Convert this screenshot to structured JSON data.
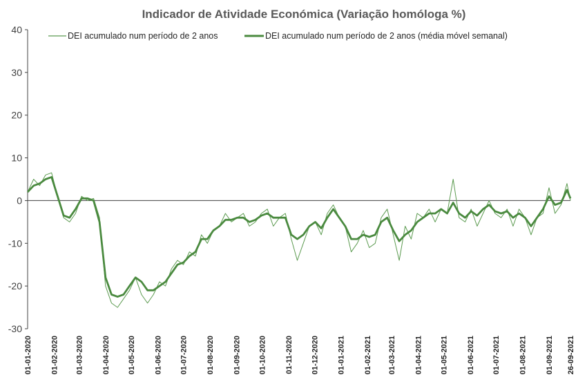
{
  "chart_data": {
    "type": "line",
    "title": "Indicador de Atividade Económica (Variação homóloga %)",
    "ylim": [
      -30,
      40
    ],
    "yticks": [
      -30,
      -20,
      -10,
      0,
      10,
      20,
      30,
      40
    ],
    "x_start": "2020-01-01",
    "x_end": "2021-09-26",
    "x_tick_labels": [
      "01-01-2020",
      "01-02-2020",
      "01-03-2020",
      "01-04-2020",
      "01-05-2020",
      "01-06-2020",
      "01-07-2020",
      "01-08-2020",
      "01-09-2020",
      "01-10-2020",
      "01-11-2020",
      "01-12-2020",
      "01-01-2021",
      "01-02-2021",
      "01-03-2021",
      "01-04-2021",
      "01-05-2021",
      "01-06-2021",
      "01-07-2021",
      "01-08-2021",
      "01-09-2021",
      "26-09-2021"
    ],
    "x_tick_dates": [
      "2020-01-01",
      "2020-02-01",
      "2020-03-01",
      "2020-04-01",
      "2020-05-01",
      "2020-06-01",
      "2020-07-01",
      "2020-08-01",
      "2020-09-01",
      "2020-10-01",
      "2020-11-01",
      "2020-12-01",
      "2021-01-01",
      "2021-02-01",
      "2021-03-01",
      "2021-04-01",
      "2021-05-01",
      "2021-06-01",
      "2021-07-01",
      "2021-08-01",
      "2021-09-01",
      "2021-09-26"
    ],
    "legend_position": "top",
    "series": [
      {
        "name": "DEI acumulado num período de 2 anos",
        "color": "#5b9a4f",
        "style": "thin-daily",
        "x": [
          "2020-01-01",
          "2020-01-08",
          "2020-01-15",
          "2020-01-22",
          "2020-01-29",
          "2020-02-05",
          "2020-02-12",
          "2020-02-19",
          "2020-02-26",
          "2020-03-04",
          "2020-03-11",
          "2020-03-18",
          "2020-03-25",
          "2020-04-01",
          "2020-04-08",
          "2020-04-15",
          "2020-04-22",
          "2020-04-29",
          "2020-05-06",
          "2020-05-13",
          "2020-05-20",
          "2020-05-27",
          "2020-06-03",
          "2020-06-10",
          "2020-06-17",
          "2020-06-24",
          "2020-07-01",
          "2020-07-08",
          "2020-07-15",
          "2020-07-22",
          "2020-07-29",
          "2020-08-05",
          "2020-08-12",
          "2020-08-19",
          "2020-08-26",
          "2020-09-02",
          "2020-09-09",
          "2020-09-16",
          "2020-09-23",
          "2020-09-30",
          "2020-10-07",
          "2020-10-14",
          "2020-10-21",
          "2020-10-28",
          "2020-11-04",
          "2020-11-11",
          "2020-11-18",
          "2020-11-25",
          "2020-12-02",
          "2020-12-09",
          "2020-12-16",
          "2020-12-23",
          "2020-12-30",
          "2021-01-06",
          "2021-01-13",
          "2021-01-20",
          "2021-01-27",
          "2021-02-03",
          "2021-02-10",
          "2021-02-17",
          "2021-02-24",
          "2021-03-03",
          "2021-03-10",
          "2021-03-17",
          "2021-03-24",
          "2021-03-31",
          "2021-04-07",
          "2021-04-14",
          "2021-04-21",
          "2021-04-28",
          "2021-05-05",
          "2021-05-12",
          "2021-05-19",
          "2021-05-26",
          "2021-06-02",
          "2021-06-09",
          "2021-06-16",
          "2021-06-23",
          "2021-06-30",
          "2021-07-07",
          "2021-07-14",
          "2021-07-21",
          "2021-07-28",
          "2021-08-04",
          "2021-08-11",
          "2021-08-18",
          "2021-08-25",
          "2021-09-01",
          "2021-09-08",
          "2021-09-15",
          "2021-09-22",
          "2021-09-26"
        ],
        "y": [
          2,
          5,
          3.5,
          6,
          6.5,
          1,
          -4,
          -5,
          -3,
          1,
          0,
          0.5,
          -4,
          -20,
          -24,
          -25,
          -23,
          -21,
          -18,
          -22,
          -24,
          -22,
          -19,
          -20,
          -16,
          -14,
          -15,
          -12,
          -13,
          -8,
          -10,
          -7,
          -6,
          -3,
          -5,
          -4,
          -3,
          -6,
          -5,
          -3,
          -2,
          -6,
          -4,
          -3,
          -9,
          -14,
          -10,
          -6,
          -5,
          -8,
          -3,
          -1,
          -4,
          -6,
          -12,
          -10,
          -7,
          -11,
          -10,
          -4,
          -2,
          -8,
          -14,
          -6,
          -9,
          -3,
          -4,
          -2,
          -5,
          -2,
          -3,
          5,
          -4,
          -5,
          -2,
          -6,
          -3,
          0,
          -3,
          -4,
          -2,
          -6,
          -2,
          -4,
          -8,
          -4,
          -3,
          3,
          -3,
          -1,
          4,
          0
        ]
      },
      {
        "name": "DEI acumulado num período de 2 anos (média móvel semanal)",
        "color": "#4a8a3f",
        "style": "thick",
        "x": [
          "2020-01-01",
          "2020-01-08",
          "2020-01-15",
          "2020-01-22",
          "2020-01-29",
          "2020-02-05",
          "2020-02-12",
          "2020-02-19",
          "2020-02-26",
          "2020-03-04",
          "2020-03-11",
          "2020-03-18",
          "2020-03-25",
          "2020-04-01",
          "2020-04-08",
          "2020-04-15",
          "2020-04-22",
          "2020-04-29",
          "2020-05-06",
          "2020-05-13",
          "2020-05-20",
          "2020-05-27",
          "2020-06-03",
          "2020-06-10",
          "2020-06-17",
          "2020-06-24",
          "2020-07-01",
          "2020-07-08",
          "2020-07-15",
          "2020-07-22",
          "2020-07-29",
          "2020-08-05",
          "2020-08-12",
          "2020-08-19",
          "2020-08-26",
          "2020-09-02",
          "2020-09-09",
          "2020-09-16",
          "2020-09-23",
          "2020-09-30",
          "2020-10-07",
          "2020-10-14",
          "2020-10-21",
          "2020-10-28",
          "2020-11-04",
          "2020-11-11",
          "2020-11-18",
          "2020-11-25",
          "2020-12-02",
          "2020-12-09",
          "2020-12-16",
          "2020-12-23",
          "2020-12-30",
          "2021-01-06",
          "2021-01-13",
          "2021-01-20",
          "2021-01-27",
          "2021-02-03",
          "2021-02-10",
          "2021-02-17",
          "2021-02-24",
          "2021-03-03",
          "2021-03-10",
          "2021-03-17",
          "2021-03-24",
          "2021-03-31",
          "2021-04-07",
          "2021-04-14",
          "2021-04-21",
          "2021-04-28",
          "2021-05-05",
          "2021-05-12",
          "2021-05-19",
          "2021-05-26",
          "2021-06-02",
          "2021-06-09",
          "2021-06-16",
          "2021-06-23",
          "2021-06-30",
          "2021-07-07",
          "2021-07-14",
          "2021-07-21",
          "2021-07-28",
          "2021-08-04",
          "2021-08-11",
          "2021-08-18",
          "2021-08-25",
          "2021-09-01",
          "2021-09-08",
          "2021-09-15",
          "2021-09-22",
          "2021-09-26"
        ],
        "y": [
          2,
          3.5,
          4,
          5,
          5.5,
          1,
          -3.5,
          -4,
          -2,
          0.5,
          0.5,
          0,
          -5,
          -18,
          -22,
          -22.5,
          -22,
          -20,
          -18,
          -19,
          -21,
          -21,
          -20,
          -19,
          -17,
          -15,
          -14.5,
          -13,
          -12,
          -9,
          -9,
          -7,
          -6,
          -4.5,
          -4.5,
          -4,
          -4,
          -5,
          -4.5,
          -3.5,
          -3,
          -4,
          -4,
          -4,
          -8,
          -9,
          -8,
          -6,
          -5,
          -6.5,
          -4,
          -2,
          -4,
          -6,
          -9,
          -9,
          -8,
          -8.5,
          -8,
          -5,
          -4,
          -7,
          -9.5,
          -8,
          -7,
          -5,
          -4,
          -3,
          -3,
          -2,
          -3,
          -0.5,
          -3,
          -4,
          -2.5,
          -3.5,
          -2,
          -1,
          -2.5,
          -3,
          -2.5,
          -4,
          -3,
          -4,
          -6,
          -4,
          -2,
          1,
          -1,
          -0.5,
          2.5,
          0.5
        ]
      }
    ]
  }
}
